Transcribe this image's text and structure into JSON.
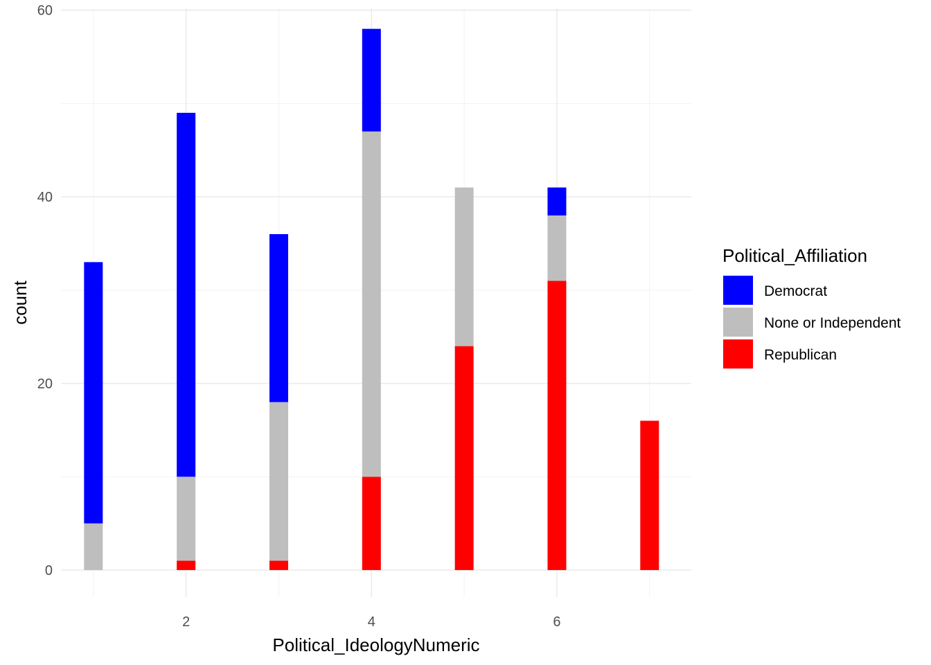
{
  "chart_data": {
    "type": "bar",
    "stacked": true,
    "xlabel": "Political_IdeologyNumeric",
    "ylabel": "count",
    "x": [
      1,
      2,
      3,
      4,
      5,
      6,
      7
    ],
    "x_ticks": [
      2,
      4,
      6
    ],
    "y_ticks": [
      0,
      20,
      40,
      60
    ],
    "xlim": [
      0.65,
      7.45
    ],
    "ylim": [
      -2.9,
      60.2
    ],
    "grid": true,
    "legend": {
      "title": "Political_Affiliation",
      "position": "right"
    },
    "series": [
      {
        "name": "Republican",
        "color": "#ff0000",
        "values": [
          0,
          1,
          1,
          10,
          24,
          31,
          16
        ]
      },
      {
        "name": "None or Independent",
        "color": "#bebebe",
        "values": [
          5,
          9,
          17,
          37,
          17,
          7,
          0
        ]
      },
      {
        "name": "Democrat",
        "color": "#0000ff",
        "values": [
          28,
          39,
          18,
          11,
          0,
          3,
          0
        ]
      }
    ],
    "legend_order": [
      "Democrat",
      "None or Independent",
      "Republican"
    ]
  }
}
